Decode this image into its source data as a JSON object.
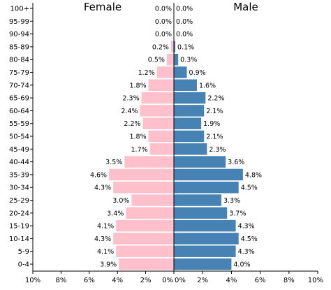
{
  "chart_data": {
    "type": "bar",
    "orientation": "horizontal-butterfly",
    "titles": {
      "left": "Female",
      "right": "Male"
    },
    "age_groups": [
      "0-4",
      "5-9",
      "10-14",
      "15-19",
      "20-24",
      "25-29",
      "30-34",
      "35-39",
      "40-44",
      "45-49",
      "50-54",
      "55-59",
      "60-64",
      "65-69",
      "70-74",
      "75-79",
      "80-84",
      "85-89",
      "90-94",
      "95-99",
      "100+"
    ],
    "series": [
      {
        "name": "Female",
        "color": "#ffc0cb",
        "values": [
          3.9,
          4.1,
          4.3,
          4.1,
          3.4,
          3.0,
          4.3,
          4.6,
          3.5,
          1.7,
          1.8,
          2.2,
          2.4,
          2.3,
          1.8,
          1.2,
          0.5,
          0.2,
          0.0,
          0.0,
          0.0
        ],
        "labels": [
          "3.9%",
          "4.1%",
          "4.3%",
          "4.1%",
          "3.4%",
          "3.0%",
          "4.3%",
          "4.6%",
          "3.5%",
          "1.7%",
          "1.8%",
          "2.2%",
          "2.4%",
          "2.3%",
          "1.8%",
          "1.2%",
          "0.5%",
          "0.2%",
          "0.0%",
          "0.0%",
          "0.0%"
        ]
      },
      {
        "name": "Male",
        "color": "#4682b4",
        "values": [
          4.0,
          4.3,
          4.5,
          4.3,
          3.7,
          3.3,
          4.5,
          4.8,
          3.6,
          2.3,
          2.1,
          1.9,
          2.1,
          2.2,
          1.6,
          0.9,
          0.3,
          0.1,
          0.0,
          0.0,
          0.0
        ],
        "labels": [
          "4.0%",
          "4.3%",
          "4.5%",
          "4.3%",
          "3.7%",
          "3.3%",
          "4.5%",
          "4.8%",
          "3.6%",
          "2.3%",
          "2.1%",
          "1.9%",
          "2.1%",
          "2.2%",
          "1.6%",
          "0.9%",
          "0.3%",
          "0.1%",
          "0.0%",
          "0.0%",
          "0.0%"
        ]
      }
    ],
    "x_ticks_left": [
      "10%",
      "8%",
      "6%",
      "4%",
      "2%",
      "0%"
    ],
    "x_ticks_right": [
      "0%",
      "2%",
      "4%",
      "6%",
      "8%",
      "10%"
    ],
    "xlim": [
      0,
      10
    ],
    "grid": false
  }
}
